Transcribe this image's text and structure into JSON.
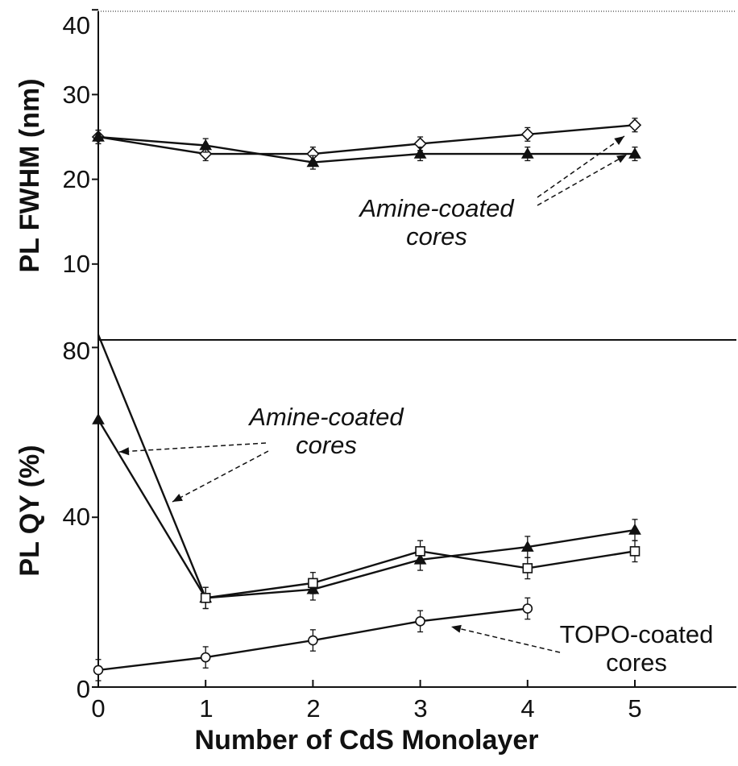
{
  "chart_data": [
    {
      "type": "line",
      "panel": "top",
      "ylabel": "PL FWHM (nm)",
      "xlabel": "",
      "ylim": [
        0,
        40
      ],
      "xlim": [
        0,
        6
      ],
      "yticks": [
        "10",
        "20",
        "30",
        "40"
      ],
      "series": [
        {
          "marker": "open-diamond",
          "x": [
            0,
            1,
            2,
            3,
            4,
            5
          ],
          "values": [
            25,
            23,
            23,
            24.2,
            25.3,
            26.4
          ],
          "errors": [
            0.8,
            0.8,
            0.8,
            0.8,
            0.8,
            0.8
          ]
        },
        {
          "marker": "filled-triangle",
          "x": [
            0,
            1,
            2,
            3,
            4,
            5
          ],
          "values": [
            25,
            24,
            22,
            23,
            23,
            23
          ],
          "errors": [
            0.8,
            0.8,
            0.8,
            0.8,
            0.8,
            0.8
          ]
        }
      ],
      "annotations": [
        {
          "line1": "Amine-coated",
          "line2": "cores"
        }
      ]
    },
    {
      "type": "line",
      "panel": "bottom",
      "ylabel": "PL QY (%)",
      "xlabel": "Number of CdS Monolayer",
      "ylim": [
        0,
        82
      ],
      "xlim": [
        0,
        6
      ],
      "yticks": [
        "0",
        "40",
        "80"
      ],
      "xticks": [
        "0",
        "1",
        "2",
        "3",
        "4",
        "5"
      ],
      "series": [
        {
          "marker": "none",
          "x": [
            0,
            1
          ],
          "values": [
            83,
            21
          ],
          "errors": [
            0,
            0
          ]
        },
        {
          "marker": "filled-triangle",
          "x": [
            0,
            1,
            2,
            3,
            4,
            5
          ],
          "values": [
            63,
            21,
            23,
            30,
            33,
            37
          ],
          "errors": [
            0,
            2.5,
            2.5,
            2.5,
            2.5,
            2.5
          ]
        },
        {
          "marker": "open-square",
          "x": [
            1,
            2,
            3,
            4,
            5
          ],
          "values": [
            21,
            24.5,
            32,
            28,
            32
          ],
          "errors": [
            2.5,
            2.5,
            2.5,
            2.5,
            2.5
          ]
        },
        {
          "marker": "open-circle",
          "x": [
            0,
            1,
            2,
            3,
            4
          ],
          "values": [
            4,
            7,
            11,
            15.5,
            18.5
          ],
          "errors": [
            2.5,
            2.5,
            2.5,
            2.5,
            2.5
          ]
        }
      ],
      "annotations": [
        {
          "line1": "Amine-coated",
          "line2": "cores"
        },
        {
          "line1": "TOPO-coated",
          "line2": "cores"
        }
      ]
    }
  ]
}
